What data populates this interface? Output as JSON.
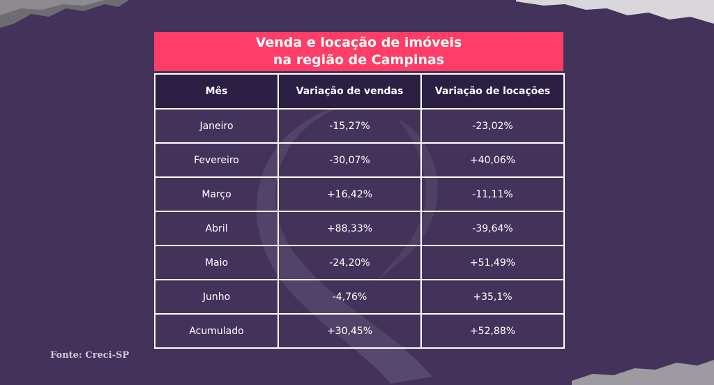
{
  "chart_data": {
    "type": "table",
    "title_lines": [
      "Venda e locação de imóveis",
      "na região de Campinas"
    ],
    "columns": [
      "Mês",
      "Variação de vendas",
      "Variação de locações"
    ],
    "rows": [
      [
        "Janeiro",
        "-15,27%",
        "-23,02%"
      ],
      [
        "Fevereiro",
        "-30,07%",
        "+40,06%"
      ],
      [
        "Março",
        "+16,42%",
        "-11,11%"
      ],
      [
        "Abril",
        "+88,33%",
        "-39,64%"
      ],
      [
        "Maio",
        "-24,20%",
        "+51,49%"
      ],
      [
        "Junho",
        "-4,76%",
        "+35,1%"
      ],
      [
        "Acumulado",
        "+30,45%",
        "+52,88%"
      ]
    ]
  },
  "source": "Fonte: Creci-SP",
  "colors": {
    "background": "#43335b",
    "title_band": "#ff3d67",
    "header": "#2b1f44",
    "border": "#ffffff"
  }
}
